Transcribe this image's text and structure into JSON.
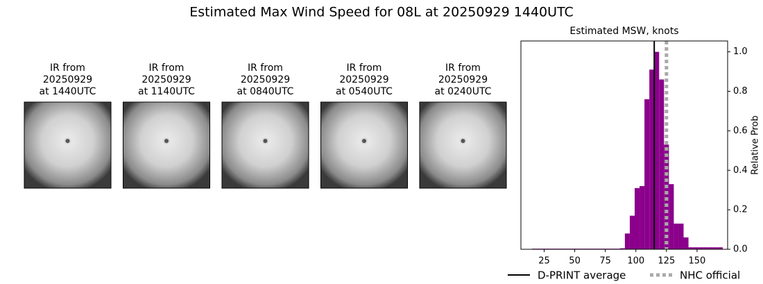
{
  "title": "Estimated Max Wind Speed for 08L at 20250929 1440UTC",
  "panels": [
    {
      "lines": [
        "IR from",
        "20250929",
        "at 1440UTC"
      ]
    },
    {
      "lines": [
        "IR from",
        "20250929",
        "at 1140UTC"
      ]
    },
    {
      "lines": [
        "IR from",
        "20250929",
        "at 0840UTC"
      ]
    },
    {
      "lines": [
        "IR from",
        "20250929",
        "at 0540UTC"
      ]
    },
    {
      "lines": [
        "IR from",
        "20250929",
        "at 0240UTC"
      ]
    }
  ],
  "chart_data": {
    "type": "histogram",
    "title": "Estimated MSW, knots",
    "y_label": "Relative Prob",
    "color": "#8b008b",
    "bins": [
      15,
      19,
      23,
      27,
      31,
      35,
      39,
      43,
      47,
      51,
      55,
      59,
      63,
      67,
      71,
      75,
      79,
      83,
      87,
      91,
      95,
      99,
      103,
      107,
      111,
      115,
      119,
      123,
      127,
      131,
      135,
      139,
      143,
      147,
      151,
      155,
      159,
      163,
      167,
      171
    ],
    "values": [
      0.003,
      0.003,
      0.003,
      0.003,
      0.003,
      0.003,
      0.003,
      0.003,
      0.003,
      0.003,
      0.003,
      0.003,
      0.003,
      0.003,
      0.003,
      0.003,
      0.003,
      0.003,
      0.005,
      0.08,
      0.17,
      0.31,
      0.32,
      0.76,
      0.91,
      1.0,
      0.86,
      0.53,
      0.33,
      0.13,
      0.13,
      0.06,
      0.01,
      0.01,
      0.01,
      0.01,
      0.01,
      0.01,
      0.01
    ],
    "xlim": [
      6,
      175
    ],
    "ylim": [
      0,
      1.055
    ],
    "xticks": [
      25,
      50,
      75,
      100,
      125,
      150
    ],
    "yticks": [
      {
        "value": 0,
        "label": "0.0"
      },
      0.2,
      0.4,
      0.6,
      0.8,
      {
        "value": 1,
        "label": "1.0"
      }
    ],
    "vlines": [
      {
        "name": "D-PRINT average",
        "x": 115,
        "color": "#000000",
        "style": "solid"
      },
      {
        "name": "NHC official",
        "x": 125,
        "color": "#aaaaaa",
        "style": "dotted"
      }
    ]
  }
}
